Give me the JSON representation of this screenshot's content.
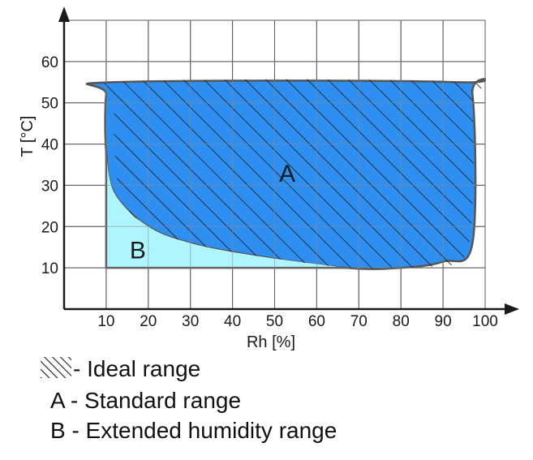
{
  "chart_data": {
    "type": "area",
    "xlabel": "Rh [%]",
    "ylabel": "T [°C]",
    "xlim": [
      0,
      100
    ],
    "ylim": [
      0,
      70
    ],
    "x_ticks": [
      10,
      20,
      30,
      40,
      50,
      60,
      70,
      80,
      90,
      100
    ],
    "y_ticks": [
      10,
      20,
      30,
      40,
      50,
      60
    ],
    "grid": true,
    "regions": [
      {
        "label": "A",
        "color": "#2f8ff0",
        "outline": [
          [
            10,
            52
          ],
          [
            12,
            55
          ],
          [
            93,
            55
          ],
          [
            97,
            52
          ],
          [
            97,
            16
          ],
          [
            90,
            11.5
          ],
          [
            80,
            10
          ],
          [
            67,
            10
          ],
          [
            45,
            13
          ],
          [
            30,
            16
          ],
          [
            20,
            20
          ],
          [
            12,
            28
          ],
          [
            10,
            38
          ]
        ]
      },
      {
        "label": "B",
        "color": "#aef5fd",
        "outline": [
          [
            10,
            10
          ],
          [
            67,
            10
          ],
          [
            45,
            13
          ],
          [
            30,
            16
          ],
          [
            20,
            20
          ],
          [
            12,
            28
          ],
          [
            10,
            38
          ]
        ]
      }
    ],
    "hatch_region": {
      "outline": [
        [
          13,
          55
        ],
        [
          93,
          55
        ],
        [
          97,
          49
        ],
        [
          96,
          15
        ],
        [
          88,
          10.5
        ],
        [
          80,
          10
        ],
        [
          67,
          10
        ],
        [
          45,
          13
        ],
        [
          30,
          16
        ],
        [
          20,
          20
        ],
        [
          14,
          26
        ],
        [
          12,
          38
        ],
        [
          12,
          50
        ]
      ]
    },
    "legend": [
      {
        "symbol": "hatch",
        "text": "- Ideal range"
      },
      {
        "symbol": "none",
        "text": "A - Standard range"
      },
      {
        "symbol": "none",
        "text": "B - Extended humidity range"
      }
    ]
  }
}
